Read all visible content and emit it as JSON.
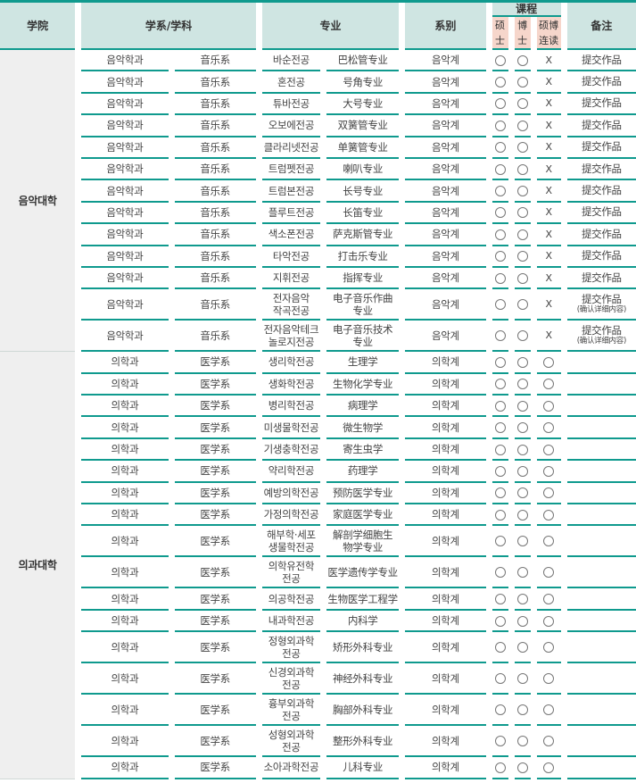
{
  "header": {
    "college": "学院",
    "dept": "学系/学科",
    "major": "专业",
    "field": "系别",
    "course": "课程",
    "master": "硕\n士",
    "doctor": "博\n士",
    "combined": "硕博\n连读",
    "note": "备注"
  },
  "symbols": {
    "yes": "circle-icon",
    "no": "X"
  },
  "colors": {
    "accent": "#0f9a8e",
    "header_bg": "#cfe5e2",
    "degree_header_bg": "#f6d6cb",
    "college_bg": "#efefef"
  },
  "groups": [
    {
      "college": "음악대학",
      "rows": [
        {
          "dept_ko": "음악학과",
          "dept_zh": "音乐系",
          "major_ko": "바순전공",
          "major_zh": "巴松管专业",
          "field": "음악계",
          "master": true,
          "doctor": true,
          "combined": "X",
          "note": "提交作品"
        },
        {
          "dept_ko": "음악학과",
          "dept_zh": "音乐系",
          "major_ko": "혼전공",
          "major_zh": "号角专业",
          "field": "음악계",
          "master": true,
          "doctor": true,
          "combined": "X",
          "note": "提交作品"
        },
        {
          "dept_ko": "음악학과",
          "dept_zh": "音乐系",
          "major_ko": "튜바전공",
          "major_zh": "大号专业",
          "field": "음악계",
          "master": true,
          "doctor": true,
          "combined": "X",
          "note": "提交作品"
        },
        {
          "dept_ko": "음악학과",
          "dept_zh": "音乐系",
          "major_ko": "오보에전공",
          "major_zh": "双簧管专业",
          "field": "음악계",
          "master": true,
          "doctor": true,
          "combined": "X",
          "note": "提交作品"
        },
        {
          "dept_ko": "음악학과",
          "dept_zh": "音乐系",
          "major_ko": "클라리넷전공",
          "major_zh": "单簧管专业",
          "field": "음악계",
          "master": true,
          "doctor": true,
          "combined": "X",
          "note": "提交作品"
        },
        {
          "dept_ko": "음악학과",
          "dept_zh": "音乐系",
          "major_ko": "트럼펫전공",
          "major_zh": "喇叭专业",
          "field": "음악계",
          "master": true,
          "doctor": true,
          "combined": "X",
          "note": "提交作品"
        },
        {
          "dept_ko": "음악학과",
          "dept_zh": "音乐系",
          "major_ko": "트럼본전공",
          "major_zh": "长号专业",
          "field": "음악계",
          "master": true,
          "doctor": true,
          "combined": "X",
          "note": "提交作品"
        },
        {
          "dept_ko": "음악학과",
          "dept_zh": "音乐系",
          "major_ko": "플루트전공",
          "major_zh": "长笛专业",
          "field": "음악계",
          "master": true,
          "doctor": true,
          "combined": "X",
          "note": "提交作品"
        },
        {
          "dept_ko": "음악학과",
          "dept_zh": "音乐系",
          "major_ko": "색소폰전공",
          "major_zh": "萨克斯管专业",
          "field": "음악계",
          "master": true,
          "doctor": true,
          "combined": "X",
          "note": "提交作品"
        },
        {
          "dept_ko": "음악학과",
          "dept_zh": "音乐系",
          "major_ko": "타악전공",
          "major_zh": "打击乐专业",
          "field": "음악계",
          "master": true,
          "doctor": true,
          "combined": "X",
          "note": "提交作品"
        },
        {
          "dept_ko": "음악학과",
          "dept_zh": "音乐系",
          "major_ko": "지휘전공",
          "major_zh": "指挥专业",
          "field": "음악계",
          "master": true,
          "doctor": true,
          "combined": "X",
          "note": "提交作品"
        },
        {
          "dept_ko": "음악학과",
          "dept_zh": "音乐系",
          "major_ko": "전자음악\n작곡전공",
          "major_zh": "电子音乐作曲\n专业",
          "field": "음악계",
          "master": true,
          "doctor": true,
          "combined": "X",
          "note": "提交作品",
          "note_sub": "(确认详细内容)"
        },
        {
          "dept_ko": "음악학과",
          "dept_zh": "音乐系",
          "major_ko": "전자음악테크\n놀로지전공",
          "major_zh": "电子音乐技术\n专业",
          "field": "음악계",
          "master": true,
          "doctor": true,
          "combined": "X",
          "note": "提交作品",
          "note_sub": "(确认详细内容)"
        }
      ]
    },
    {
      "college": "의과대학",
      "rows": [
        {
          "dept_ko": "의학과",
          "dept_zh": "医学系",
          "major_ko": "생리학전공",
          "major_zh": "生理学",
          "field": "의학계",
          "master": true,
          "doctor": true,
          "combined": true,
          "note": ""
        },
        {
          "dept_ko": "의학과",
          "dept_zh": "医学系",
          "major_ko": "생화학전공",
          "major_zh": "生物化学专业",
          "field": "의학계",
          "master": true,
          "doctor": true,
          "combined": true,
          "note": ""
        },
        {
          "dept_ko": "의학과",
          "dept_zh": "医学系",
          "major_ko": "병리학전공",
          "major_zh": "病理学",
          "field": "의학계",
          "master": true,
          "doctor": true,
          "combined": true,
          "note": ""
        },
        {
          "dept_ko": "의학과",
          "dept_zh": "医学系",
          "major_ko": "미생물학전공",
          "major_zh": "微生物学",
          "field": "의학계",
          "master": true,
          "doctor": true,
          "combined": true,
          "note": ""
        },
        {
          "dept_ko": "의학과",
          "dept_zh": "医学系",
          "major_ko": "기생충학전공",
          "major_zh": "寄生虫学",
          "field": "의학계",
          "master": true,
          "doctor": true,
          "combined": true,
          "note": ""
        },
        {
          "dept_ko": "의학과",
          "dept_zh": "医学系",
          "major_ko": "약리학전공",
          "major_zh": "药理学",
          "field": "의학계",
          "master": true,
          "doctor": true,
          "combined": true,
          "note": ""
        },
        {
          "dept_ko": "의학과",
          "dept_zh": "医学系",
          "major_ko": "예방의학전공",
          "major_zh": "预防医学专业",
          "field": "의학계",
          "master": true,
          "doctor": true,
          "combined": true,
          "note": ""
        },
        {
          "dept_ko": "의학과",
          "dept_zh": "医学系",
          "major_ko": "가정의학전공",
          "major_zh": "家庭医学专业",
          "field": "의학계",
          "master": true,
          "doctor": true,
          "combined": true,
          "note": ""
        },
        {
          "dept_ko": "의학과",
          "dept_zh": "医学系",
          "major_ko": "해부학·세포\n생물학전공",
          "major_zh": "解剖学细胞生\n物学专业",
          "field": "의학계",
          "master": true,
          "doctor": true,
          "combined": true,
          "note": ""
        },
        {
          "dept_ko": "의학과",
          "dept_zh": "医学系",
          "major_ko": "의학유전학\n전공",
          "major_zh": "医学遗传学专业",
          "field": "의학계",
          "master": true,
          "doctor": true,
          "combined": true,
          "note": ""
        },
        {
          "dept_ko": "의학과",
          "dept_zh": "医学系",
          "major_ko": "의공학전공",
          "major_zh": "生物医学工程学",
          "field": "의학계",
          "master": true,
          "doctor": true,
          "combined": true,
          "note": ""
        },
        {
          "dept_ko": "의학과",
          "dept_zh": "医学系",
          "major_ko": "내과학전공",
          "major_zh": "内科学",
          "field": "의학계",
          "master": true,
          "doctor": true,
          "combined": true,
          "note": ""
        },
        {
          "dept_ko": "의학과",
          "dept_zh": "医学系",
          "major_ko": "정형외과학\n전공",
          "major_zh": "矫形外科专业",
          "field": "의학계",
          "master": true,
          "doctor": true,
          "combined": true,
          "note": ""
        },
        {
          "dept_ko": "의학과",
          "dept_zh": "医学系",
          "major_ko": "신경외과학\n전공",
          "major_zh": "神经外科专业",
          "field": "의학계",
          "master": true,
          "doctor": true,
          "combined": true,
          "note": ""
        },
        {
          "dept_ko": "의학과",
          "dept_zh": "医学系",
          "major_ko": "흉부외과학\n전공",
          "major_zh": "胸部外科专业",
          "field": "의학계",
          "master": true,
          "doctor": true,
          "combined": true,
          "note": ""
        },
        {
          "dept_ko": "의학과",
          "dept_zh": "医学系",
          "major_ko": "성형외과학\n전공",
          "major_zh": "整形外科专业",
          "field": "의학계",
          "master": true,
          "doctor": true,
          "combined": true,
          "note": ""
        },
        {
          "dept_ko": "의학과",
          "dept_zh": "医学系",
          "major_ko": "소아과학전공",
          "major_zh": "儿科专业",
          "field": "의학계",
          "master": true,
          "doctor": true,
          "combined": true,
          "note": ""
        }
      ]
    }
  ]
}
